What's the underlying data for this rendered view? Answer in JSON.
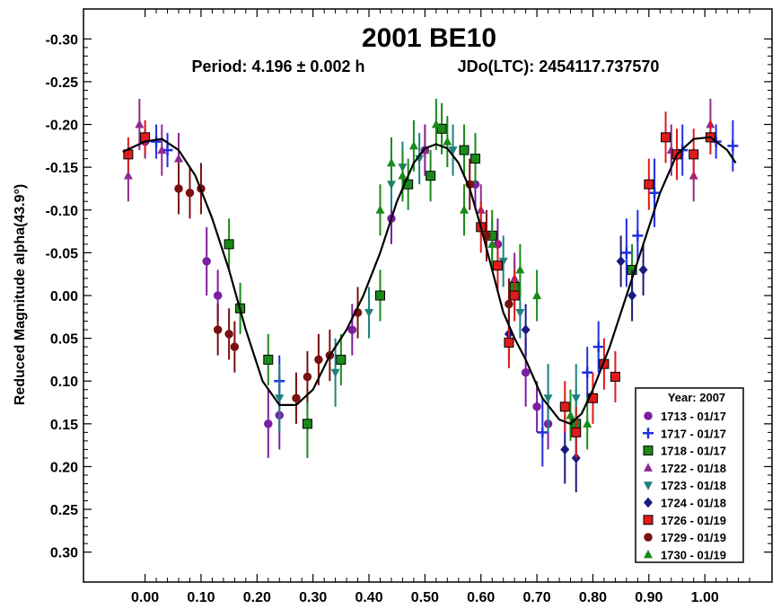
{
  "chart_data": {
    "type": "scatter",
    "title": "2001 BE10",
    "subtitle_period": "Period: 4.196 ± 0.002 h",
    "subtitle_epoch": "JDo(LTC): 2454117.737570",
    "ylabel": "Reduced Magnitude alpha(43.9°)",
    "xlabel": "",
    "xlim": [
      -0.11,
      1.12
    ],
    "ylim": [
      0.335,
      -0.335
    ],
    "y_inverted": true,
    "grid": false,
    "legend_position": "bottom-right",
    "legend_title": "Year: 2007",
    "xticks": [
      "0.00",
      "0.10",
      "0.20",
      "0.30",
      "0.40",
      "0.50",
      "0.60",
      "0.70",
      "0.80",
      "0.90",
      "1.00"
    ],
    "yticks": [
      "-0.30",
      "-0.25",
      "-0.20",
      "-0.15",
      "-0.10",
      "-0.05",
      "0.00",
      "0.05",
      "0.10",
      "0.15",
      "0.20",
      "0.25",
      "0.30"
    ],
    "fit_curve": {
      "color": "#000000",
      "points": [
        [
          -0.04,
          -0.168
        ],
        [
          0.0,
          -0.18
        ],
        [
          0.03,
          -0.183
        ],
        [
          0.06,
          -0.17
        ],
        [
          0.09,
          -0.14
        ],
        [
          0.12,
          -0.09
        ],
        [
          0.15,
          -0.03
        ],
        [
          0.18,
          0.04
        ],
        [
          0.21,
          0.1
        ],
        [
          0.24,
          0.128
        ],
        [
          0.27,
          0.128
        ],
        [
          0.3,
          0.11
        ],
        [
          0.33,
          0.07
        ],
        [
          0.36,
          0.04
        ],
        [
          0.39,
          0.0
        ],
        [
          0.42,
          -0.05
        ],
        [
          0.45,
          -0.11
        ],
        [
          0.48,
          -0.155
        ],
        [
          0.5,
          -0.172
        ],
        [
          0.52,
          -0.177
        ],
        [
          0.54,
          -0.172
        ],
        [
          0.56,
          -0.155
        ],
        [
          0.58,
          -0.125
        ],
        [
          0.6,
          -0.08
        ],
        [
          0.62,
          -0.03
        ],
        [
          0.64,
          0.02
        ],
        [
          0.66,
          0.05
        ],
        [
          0.68,
          0.075
        ],
        [
          0.71,
          0.12
        ],
        [
          0.74,
          0.145
        ],
        [
          0.76,
          0.15
        ],
        [
          0.78,
          0.138
        ],
        [
          0.8,
          0.11
        ],
        [
          0.83,
          0.06
        ],
        [
          0.86,
          0.0
        ],
        [
          0.89,
          -0.06
        ],
        [
          0.92,
          -0.12
        ],
        [
          0.95,
          -0.165
        ],
        [
          0.98,
          -0.183
        ],
        [
          1.01,
          -0.185
        ],
        [
          1.04,
          -0.17
        ],
        [
          1.055,
          -0.155
        ]
      ]
    },
    "series": [
      {
        "name": "1713 - 01/17",
        "marker": "circle",
        "color": "#7B1FA2",
        "points": [
          [
            0.0,
            -0.18,
            0.02
          ],
          [
            0.11,
            -0.04,
            0.04
          ],
          [
            0.13,
            0.0,
            0.03
          ],
          [
            0.22,
            0.15,
            0.04
          ],
          [
            0.24,
            0.14,
            0.04
          ],
          [
            0.37,
            0.04,
            0.03
          ],
          [
            0.44,
            -0.09,
            0.03
          ],
          [
            0.5,
            -0.17,
            0.03
          ],
          [
            0.59,
            -0.13,
            0.03
          ],
          [
            0.63,
            -0.06,
            0.03
          ],
          [
            0.68,
            0.09,
            0.04
          ],
          [
            0.7,
            0.13,
            0.03
          ],
          [
            0.72,
            0.15,
            0.03
          ]
        ]
      },
      {
        "name": "1717 - 01/17",
        "marker": "plus",
        "color": "#1f2fe0",
        "points": [
          [
            0.02,
            -0.18,
            0.02
          ],
          [
            0.04,
            -0.17,
            0.02
          ],
          [
            0.24,
            0.1,
            0.03
          ],
          [
            0.71,
            0.16,
            0.04
          ],
          [
            0.79,
            0.09,
            0.03
          ],
          [
            0.81,
            0.06,
            0.03
          ],
          [
            0.86,
            -0.05,
            0.04
          ],
          [
            0.88,
            -0.07,
            0.03
          ],
          [
            0.91,
            -0.12,
            0.04
          ],
          [
            0.96,
            -0.17,
            0.03
          ],
          [
            1.02,
            -0.18,
            0.02
          ],
          [
            1.05,
            -0.175,
            0.03
          ]
        ]
      },
      {
        "name": "1718 - 01/17",
        "marker": "square",
        "color": "#1a8a1a",
        "points": [
          [
            0.15,
            -0.06,
            0.03
          ],
          [
            0.17,
            0.015,
            0.03
          ],
          [
            0.22,
            0.075,
            0.03
          ],
          [
            0.29,
            0.15,
            0.04
          ],
          [
            0.35,
            0.075,
            0.03
          ],
          [
            0.42,
            0.0,
            0.03
          ],
          [
            0.47,
            -0.13,
            0.03
          ],
          [
            0.51,
            -0.14,
            0.03
          ],
          [
            0.53,
            -0.195,
            0.03
          ],
          [
            0.57,
            -0.17,
            0.03
          ],
          [
            0.59,
            -0.16,
            0.03
          ],
          [
            0.62,
            -0.07,
            0.03
          ],
          [
            0.66,
            -0.01,
            0.03
          ],
          [
            0.77,
            0.15,
            0.04
          ],
          [
            0.87,
            -0.03,
            0.03
          ]
        ]
      },
      {
        "name": "1722 - 01/18",
        "marker": "triangle",
        "color": "#8e2a8e",
        "points": [
          [
            -0.03,
            -0.14,
            0.03
          ],
          [
            -0.01,
            -0.2,
            0.03
          ],
          [
            0.03,
            -0.17,
            0.03
          ],
          [
            0.06,
            -0.16,
            0.03
          ],
          [
            0.5,
            -0.17,
            0.03
          ],
          [
            0.6,
            -0.1,
            0.03
          ],
          [
            0.66,
            -0.02,
            0.03
          ],
          [
            0.94,
            -0.17,
            0.03
          ],
          [
            0.98,
            -0.14,
            0.03
          ],
          [
            1.01,
            -0.2,
            0.03
          ]
        ]
      },
      {
        "name": "1723 - 01/18",
        "marker": "triangle-down",
        "color": "#1f8080",
        "points": [
          [
            0.24,
            0.12,
            0.04
          ],
          [
            0.34,
            0.09,
            0.04
          ],
          [
            0.4,
            0.02,
            0.03
          ],
          [
            0.44,
            -0.13,
            0.03
          ],
          [
            0.46,
            -0.15,
            0.03
          ],
          [
            0.49,
            -0.16,
            0.03
          ],
          [
            0.55,
            -0.17,
            0.03
          ],
          [
            0.64,
            -0.04,
            0.03
          ],
          [
            0.67,
            0.02,
            0.03
          ],
          [
            0.72,
            0.12,
            0.04
          ],
          [
            0.77,
            0.12,
            0.04
          ]
        ]
      },
      {
        "name": "1724 - 01/18",
        "marker": "diamond",
        "color": "#1a1a80",
        "points": [
          [
            0.65,
            0.045,
            0.03
          ],
          [
            0.68,
            0.04,
            0.03
          ],
          [
            0.75,
            0.18,
            0.04
          ],
          [
            0.77,
            0.19,
            0.04
          ],
          [
            0.85,
            -0.04,
            0.03
          ],
          [
            0.87,
            0.0,
            0.03
          ],
          [
            0.89,
            -0.03,
            0.03
          ]
        ]
      },
      {
        "name": "1726 - 01/19",
        "marker": "square",
        "color": "#e01b1b",
        "points": [
          [
            -0.03,
            -0.165,
            0.02
          ],
          [
            0.0,
            -0.185,
            0.02
          ],
          [
            0.6,
            -0.08,
            0.03
          ],
          [
            0.63,
            -0.035,
            0.03
          ],
          [
            0.65,
            0.055,
            0.03
          ],
          [
            0.66,
            0.0,
            0.03
          ],
          [
            0.75,
            0.13,
            0.03
          ],
          [
            0.77,
            0.16,
            0.03
          ],
          [
            0.8,
            0.12,
            0.03
          ],
          [
            0.82,
            0.08,
            0.03
          ],
          [
            0.84,
            0.095,
            0.03
          ],
          [
            0.9,
            -0.13,
            0.03
          ],
          [
            0.93,
            -0.185,
            0.03
          ],
          [
            0.95,
            -0.165,
            0.03
          ],
          [
            0.98,
            -0.165,
            0.03
          ],
          [
            1.01,
            -0.185,
            0.02
          ]
        ]
      },
      {
        "name": "1729 - 01/19",
        "marker": "circle",
        "color": "#7a1010",
        "points": [
          [
            0.06,
            -0.125,
            0.03
          ],
          [
            0.08,
            -0.12,
            0.03
          ],
          [
            0.1,
            -0.125,
            0.03
          ],
          [
            0.13,
            0.04,
            0.03
          ],
          [
            0.15,
            0.045,
            0.03
          ],
          [
            0.16,
            0.06,
            0.03
          ],
          [
            0.27,
            0.12,
            0.03
          ],
          [
            0.29,
            0.095,
            0.03
          ],
          [
            0.31,
            0.075,
            0.03
          ],
          [
            0.33,
            0.07,
            0.03
          ],
          [
            0.38,
            0.02,
            0.03
          ],
          [
            0.58,
            -0.13,
            0.03
          ],
          [
            0.61,
            -0.07,
            0.03
          ],
          [
            0.65,
            0.01,
            0.03
          ]
        ]
      },
      {
        "name": "1730 - 01/19",
        "marker": "triangle",
        "color": "#1a8a1a",
        "points": [
          [
            0.42,
            -0.1,
            0.03
          ],
          [
            0.44,
            -0.155,
            0.03
          ],
          [
            0.46,
            -0.14,
            0.03
          ],
          [
            0.48,
            -0.175,
            0.03
          ],
          [
            0.52,
            -0.2,
            0.03
          ],
          [
            0.54,
            -0.18,
            0.03
          ],
          [
            0.57,
            -0.1,
            0.03
          ],
          [
            0.62,
            -0.06,
            0.03
          ],
          [
            0.67,
            -0.03,
            0.03
          ],
          [
            0.7,
            0.0,
            0.03
          ],
          [
            0.76,
            0.14,
            0.03
          ],
          [
            0.79,
            0.15,
            0.03
          ]
        ]
      }
    ]
  }
}
